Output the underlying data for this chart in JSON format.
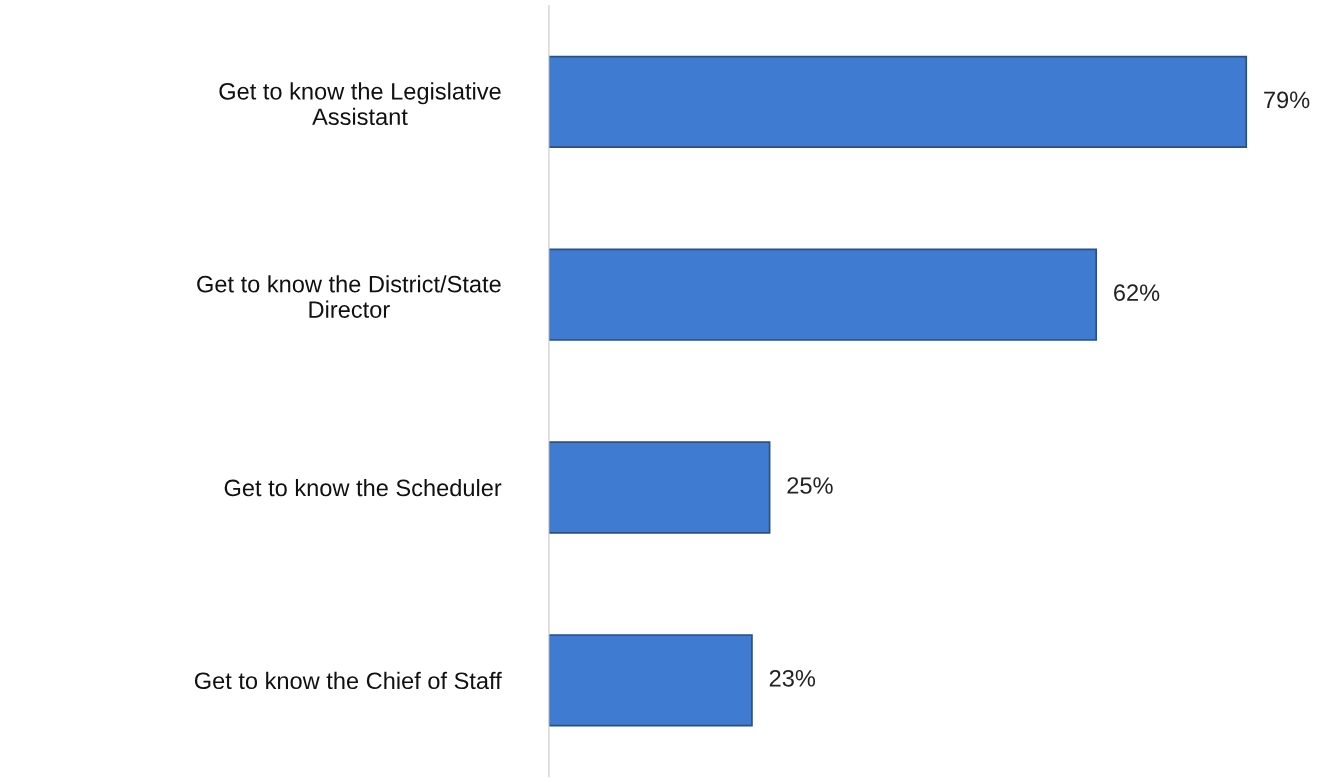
{
  "chart_data": {
    "type": "bar",
    "orientation": "horizontal",
    "categories": [
      "Get to know the Legislative\nAssistant",
      "Get to know the District/State\nDirector",
      "Get to know the Scheduler",
      "Get to know the Chief of Staff"
    ],
    "values": [
      79,
      62,
      25,
      23
    ],
    "value_labels": [
      "79%",
      "62%",
      "25%",
      "23%"
    ],
    "color": "#3f7bd0",
    "tick_labels": "y",
    "grid": false,
    "legend": false
  }
}
